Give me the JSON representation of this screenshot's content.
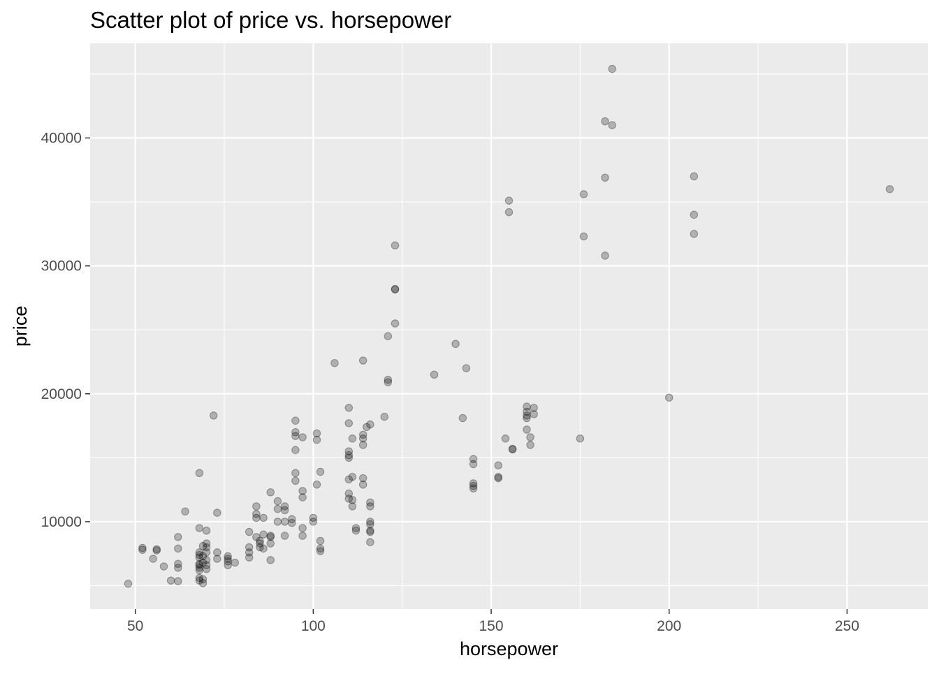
{
  "chart_data": {
    "type": "scatter",
    "title": "Scatter plot of price vs. horsepower",
    "xlabel": "horsepower",
    "ylabel": "price",
    "xlim": [
      37.3,
      272.7
    ],
    "ylim": [
      3170,
      47400
    ],
    "x_ticks": [
      50,
      100,
      150,
      200,
      250
    ],
    "y_ticks": [
      10000,
      20000,
      30000,
      40000
    ],
    "x_tick_labels": [
      "50",
      "100",
      "150",
      "200",
      "250"
    ],
    "y_tick_labels": [
      "10000",
      "20000",
      "30000",
      "40000"
    ],
    "grid": true,
    "legend": "none",
    "colors": {
      "panel": "#ebebeb",
      "grid": "#ffffff",
      "point": "#000000",
      "point_opacity": 0.25,
      "text": "#4d4d4d",
      "title": "#000000"
    },
    "points": [
      {
        "x": 48,
        "y": 5150
      },
      {
        "x": 52,
        "y": 7950
      },
      {
        "x": 52,
        "y": 7800
      },
      {
        "x": 55,
        "y": 7100
      },
      {
        "x": 56,
        "y": 7850
      },
      {
        "x": 56,
        "y": 7750
      },
      {
        "x": 58,
        "y": 6500
      },
      {
        "x": 60,
        "y": 5400
      },
      {
        "x": 62,
        "y": 5350
      },
      {
        "x": 62,
        "y": 6400
      },
      {
        "x": 62,
        "y": 6700
      },
      {
        "x": 62,
        "y": 7900
      },
      {
        "x": 62,
        "y": 8800
      },
      {
        "x": 64,
        "y": 10800
      },
      {
        "x": 68,
        "y": 13800
      },
      {
        "x": 68,
        "y": 9500
      },
      {
        "x": 68,
        "y": 7600
      },
      {
        "x": 68,
        "y": 7400
      },
      {
        "x": 68,
        "y": 7200
      },
      {
        "x": 68,
        "y": 6700
      },
      {
        "x": 68,
        "y": 6600
      },
      {
        "x": 68,
        "y": 6400
      },
      {
        "x": 68,
        "y": 6200
      },
      {
        "x": 68,
        "y": 5600
      },
      {
        "x": 68,
        "y": 5400
      },
      {
        "x": 69,
        "y": 5200
      },
      {
        "x": 69,
        "y": 5500
      },
      {
        "x": 69,
        "y": 6800
      },
      {
        "x": 69,
        "y": 7300
      },
      {
        "x": 69,
        "y": 8100
      },
      {
        "x": 70,
        "y": 8300
      },
      {
        "x": 70,
        "y": 8000
      },
      {
        "x": 70,
        "y": 7600
      },
      {
        "x": 70,
        "y": 7000
      },
      {
        "x": 70,
        "y": 6600
      },
      {
        "x": 70,
        "y": 6300
      },
      {
        "x": 70,
        "y": 9300
      },
      {
        "x": 72,
        "y": 18300
      },
      {
        "x": 73,
        "y": 10700
      },
      {
        "x": 73,
        "y": 7600
      },
      {
        "x": 73,
        "y": 7100
      },
      {
        "x": 76,
        "y": 7300
      },
      {
        "x": 76,
        "y": 7100
      },
      {
        "x": 76,
        "y": 6900
      },
      {
        "x": 76,
        "y": 6600
      },
      {
        "x": 78,
        "y": 6800
      },
      {
        "x": 82,
        "y": 9200
      },
      {
        "x": 82,
        "y": 8000
      },
      {
        "x": 82,
        "y": 7600
      },
      {
        "x": 82,
        "y": 7200
      },
      {
        "x": 84,
        "y": 11200
      },
      {
        "x": 84,
        "y": 10600
      },
      {
        "x": 84,
        "y": 10300
      },
      {
        "x": 84,
        "y": 8800
      },
      {
        "x": 85,
        "y": 8500
      },
      {
        "x": 85,
        "y": 8300
      },
      {
        "x": 85,
        "y": 8000
      },
      {
        "x": 86,
        "y": 10300
      },
      {
        "x": 86,
        "y": 9000
      },
      {
        "x": 86,
        "y": 7900
      },
      {
        "x": 88,
        "y": 12300
      },
      {
        "x": 88,
        "y": 8900
      },
      {
        "x": 88,
        "y": 8800
      },
      {
        "x": 88,
        "y": 8300
      },
      {
        "x": 88,
        "y": 7000
      },
      {
        "x": 90,
        "y": 11600
      },
      {
        "x": 90,
        "y": 11000
      },
      {
        "x": 90,
        "y": 10000
      },
      {
        "x": 92,
        "y": 11200
      },
      {
        "x": 92,
        "y": 10900
      },
      {
        "x": 92,
        "y": 10000
      },
      {
        "x": 92,
        "y": 8900
      },
      {
        "x": 94,
        "y": 10200
      },
      {
        "x": 94,
        "y": 9900
      },
      {
        "x": 95,
        "y": 17900
      },
      {
        "x": 95,
        "y": 17000
      },
      {
        "x": 95,
        "y": 16700
      },
      {
        "x": 95,
        "y": 15600
      },
      {
        "x": 95,
        "y": 13800
      },
      {
        "x": 95,
        "y": 13200
      },
      {
        "x": 97,
        "y": 16600
      },
      {
        "x": 97,
        "y": 12400
      },
      {
        "x": 97,
        "y": 11900
      },
      {
        "x": 97,
        "y": 9500
      },
      {
        "x": 97,
        "y": 8900
      },
      {
        "x": 100,
        "y": 10300
      },
      {
        "x": 100,
        "y": 10000
      },
      {
        "x": 101,
        "y": 16900
      },
      {
        "x": 101,
        "y": 16400
      },
      {
        "x": 101,
        "y": 12900
      },
      {
        "x": 102,
        "y": 13900
      },
      {
        "x": 102,
        "y": 8500
      },
      {
        "x": 102,
        "y": 7900
      },
      {
        "x": 102,
        "y": 7700
      },
      {
        "x": 106,
        "y": 22400
      },
      {
        "x": 110,
        "y": 18900
      },
      {
        "x": 110,
        "y": 17700
      },
      {
        "x": 110,
        "y": 15500
      },
      {
        "x": 110,
        "y": 15200
      },
      {
        "x": 110,
        "y": 15000
      },
      {
        "x": 110,
        "y": 13300
      },
      {
        "x": 110,
        "y": 12200
      },
      {
        "x": 110,
        "y": 11800
      },
      {
        "x": 111,
        "y": 16500
      },
      {
        "x": 111,
        "y": 13500
      },
      {
        "x": 111,
        "y": 11700
      },
      {
        "x": 111,
        "y": 11200
      },
      {
        "x": 112,
        "y": 9500
      },
      {
        "x": 112,
        "y": 9300
      },
      {
        "x": 114,
        "y": 22600
      },
      {
        "x": 114,
        "y": 16800
      },
      {
        "x": 114,
        "y": 16500
      },
      {
        "x": 114,
        "y": 16000
      },
      {
        "x": 114,
        "y": 13400
      },
      {
        "x": 114,
        "y": 12900
      },
      {
        "x": 115,
        "y": 17400
      },
      {
        "x": 116,
        "y": 17600
      },
      {
        "x": 116,
        "y": 11500
      },
      {
        "x": 116,
        "y": 11200
      },
      {
        "x": 116,
        "y": 10000
      },
      {
        "x": 116,
        "y": 9800
      },
      {
        "x": 116,
        "y": 9300
      },
      {
        "x": 116,
        "y": 9200
      },
      {
        "x": 116,
        "y": 8400
      },
      {
        "x": 120,
        "y": 18200
      },
      {
        "x": 121,
        "y": 24500
      },
      {
        "x": 121,
        "y": 21100
      },
      {
        "x": 121,
        "y": 20900
      },
      {
        "x": 123,
        "y": 31600
      },
      {
        "x": 123,
        "y": 28200
      },
      {
        "x": 123,
        "y": 28150
      },
      {
        "x": 123,
        "y": 25500
      },
      {
        "x": 134,
        "y": 21500
      },
      {
        "x": 140,
        "y": 23900
      },
      {
        "x": 142,
        "y": 18100
      },
      {
        "x": 143,
        "y": 22000
      },
      {
        "x": 145,
        "y": 14900
      },
      {
        "x": 145,
        "y": 14500
      },
      {
        "x": 145,
        "y": 13000
      },
      {
        "x": 145,
        "y": 12800
      },
      {
        "x": 145,
        "y": 12600
      },
      {
        "x": 152,
        "y": 14400
      },
      {
        "x": 152,
        "y": 13500
      },
      {
        "x": 152,
        "y": 13400
      },
      {
        "x": 154,
        "y": 16500
      },
      {
        "x": 155,
        "y": 35100
      },
      {
        "x": 155,
        "y": 34200
      },
      {
        "x": 156,
        "y": 15700
      },
      {
        "x": 156,
        "y": 15650
      },
      {
        "x": 160,
        "y": 19000
      },
      {
        "x": 160,
        "y": 18600
      },
      {
        "x": 160,
        "y": 18300
      },
      {
        "x": 160,
        "y": 18100
      },
      {
        "x": 160,
        "y": 17200
      },
      {
        "x": 161,
        "y": 16600
      },
      {
        "x": 161,
        "y": 16000
      },
      {
        "x": 162,
        "y": 18900
      },
      {
        "x": 162,
        "y": 18400
      },
      {
        "x": 175,
        "y": 16500
      },
      {
        "x": 176,
        "y": 35600
      },
      {
        "x": 176,
        "y": 32300
      },
      {
        "x": 182,
        "y": 41300
      },
      {
        "x": 182,
        "y": 36900
      },
      {
        "x": 182,
        "y": 30800
      },
      {
        "x": 184,
        "y": 45400
      },
      {
        "x": 184,
        "y": 41000
      },
      {
        "x": 200,
        "y": 19700
      },
      {
        "x": 207,
        "y": 37000
      },
      {
        "x": 207,
        "y": 34000
      },
      {
        "x": 207,
        "y": 32500
      },
      {
        "x": 262,
        "y": 36000
      }
    ]
  }
}
